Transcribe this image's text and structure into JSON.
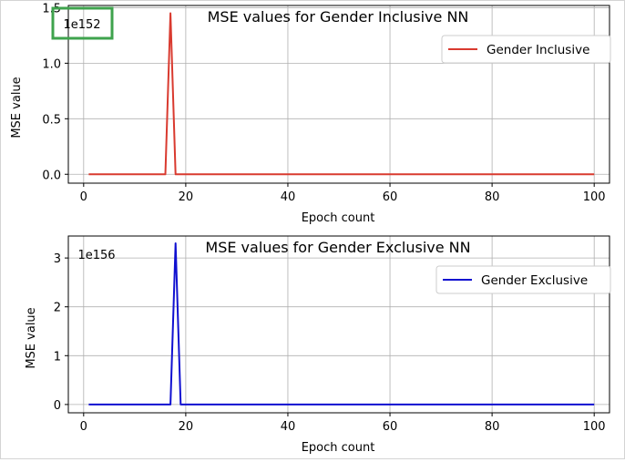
{
  "chart_data": [
    {
      "type": "line",
      "title": "MSE values for Gender Inclusive NN",
      "xlabel": "Epoch count",
      "ylabel": "MSE value",
      "offset_text": "1e152",
      "xlim": [
        -3,
        103
      ],
      "ylim": [
        -0.08,
        1.52
      ],
      "xticks": [
        0,
        20,
        40,
        60,
        80,
        100
      ],
      "yticks": [
        0.0,
        0.5,
        1.0,
        1.5
      ],
      "ytick_labels": [
        "0.0",
        "0.5",
        "1.0",
        "1.5"
      ],
      "grid": true,
      "legend_position": "top-right",
      "color": "#d93a2f",
      "series": [
        {
          "name": "Gender Inclusive",
          "x": [
            1,
            16,
            17,
            18,
            100
          ],
          "y": [
            0,
            0,
            1.45,
            0,
            0
          ]
        }
      ],
      "highlight_offset_box": true,
      "highlight_color": "#3fa34d"
    },
    {
      "type": "line",
      "title": "MSE values for Gender Exclusive NN",
      "xlabel": "Epoch count",
      "ylabel": "MSE value",
      "offset_text": "1e156",
      "xlim": [
        -3,
        103
      ],
      "ylim": [
        -0.17,
        3.45
      ],
      "xticks": [
        0,
        20,
        40,
        60,
        80,
        100
      ],
      "yticks": [
        0,
        1,
        2,
        3
      ],
      "ytick_labels": [
        "0",
        "1",
        "2",
        "3"
      ],
      "grid": true,
      "legend_position": "top-right",
      "color": "#1010d0",
      "series": [
        {
          "name": "Gender Exclusive",
          "x": [
            1,
            17,
            18,
            19,
            100
          ],
          "y": [
            0,
            0,
            3.3,
            0,
            0
          ]
        }
      ],
      "highlight_offset_box": false
    }
  ]
}
